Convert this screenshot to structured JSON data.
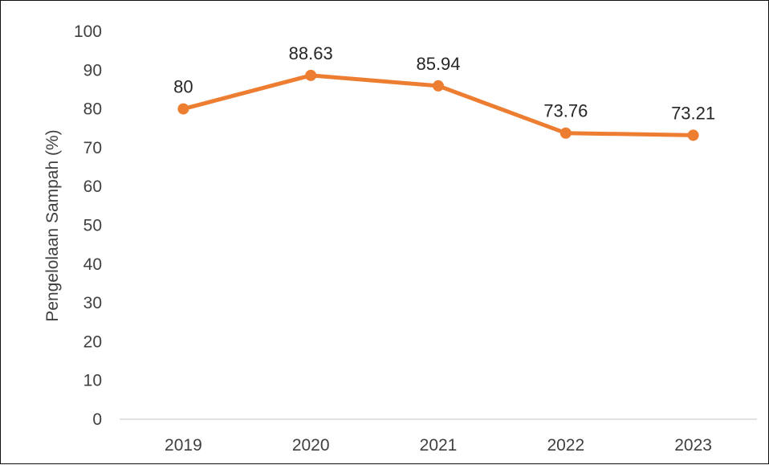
{
  "chart_data": {
    "type": "line",
    "title": "",
    "xlabel": "",
    "ylabel": "Pengelolaan Sampah (%)",
    "categories": [
      "2019",
      "2020",
      "2021",
      "2022",
      "2023"
    ],
    "values": [
      80,
      88.63,
      85.94,
      73.76,
      73.21
    ],
    "data_labels": [
      "80",
      "88.63",
      "85.94",
      "73.76",
      "73.21"
    ],
    "ylim": [
      0,
      100
    ],
    "y_ticks": [
      0,
      10,
      20,
      30,
      40,
      50,
      60,
      70,
      80,
      90,
      100
    ],
    "grid": false,
    "legend": "none",
    "line_color": "#ED7D31",
    "axis_line_color": "#D9D9D9"
  }
}
